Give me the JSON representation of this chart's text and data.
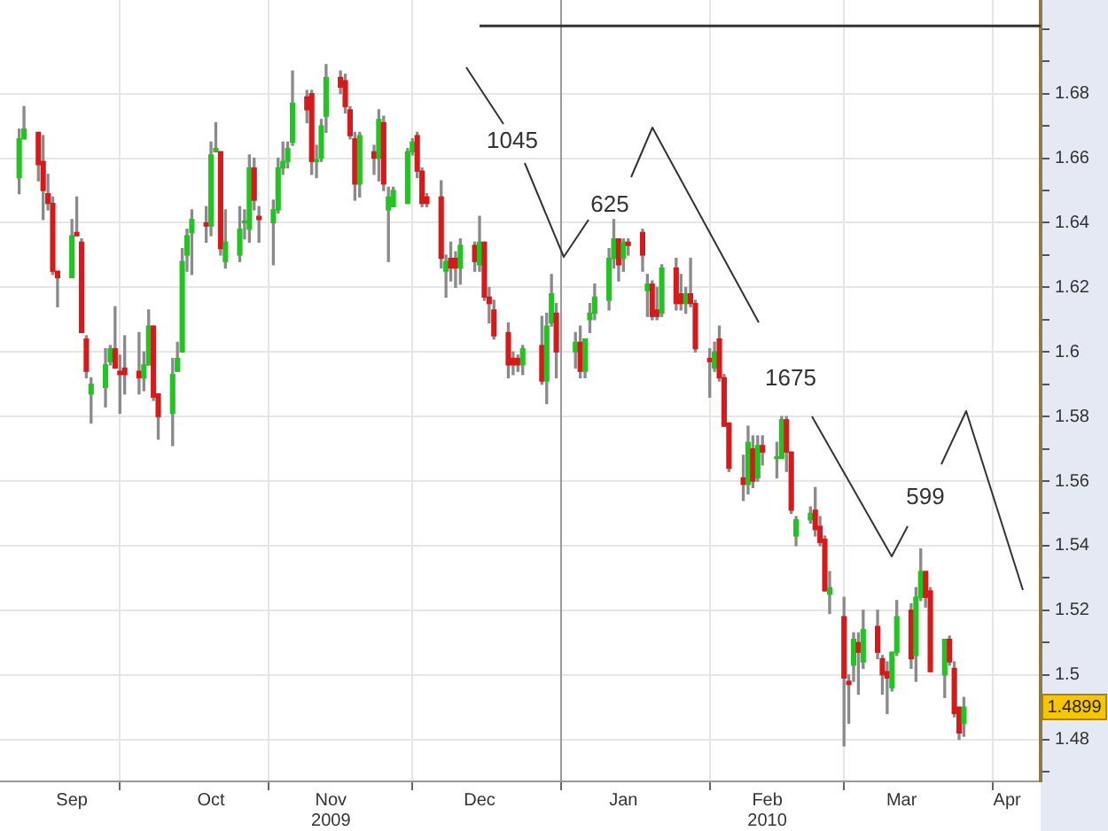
{
  "chart_data": {
    "type": "candlestick",
    "x": [
      "2009-09-10",
      "2009-09-11",
      "2009-09-14",
      "2009-09-15",
      "2009-09-16",
      "2009-09-17",
      "2009-09-18",
      "2009-09-21",
      "2009-09-22",
      "2009-09-23",
      "2009-09-24",
      "2009-09-25",
      "2009-09-28",
      "2009-09-29",
      "2009-09-30",
      "2009-10-01",
      "2009-10-02",
      "2009-10-05",
      "2009-10-06",
      "2009-10-07",
      "2009-10-08",
      "2009-10-09",
      "2009-10-12",
      "2009-10-13",
      "2009-10-14",
      "2009-10-15",
      "2009-10-16",
      "2009-10-19",
      "2009-10-20",
      "2009-10-21",
      "2009-10-22",
      "2009-10-23",
      "2009-10-26",
      "2009-10-27",
      "2009-10-28",
      "2009-10-29",
      "2009-10-30",
      "2009-11-02",
      "2009-11-03",
      "2009-11-04",
      "2009-11-05",
      "2009-11-06",
      "2009-11-09",
      "2009-11-10",
      "2009-11-11",
      "2009-11-12",
      "2009-11-13",
      "2009-11-16",
      "2009-11-17",
      "2009-11-18",
      "2009-11-19",
      "2009-11-20",
      "2009-11-23",
      "2009-11-24",
      "2009-11-25",
      "2009-11-26",
      "2009-11-27",
      "2009-11-30",
      "2009-12-01",
      "2009-12-02",
      "2009-12-03",
      "2009-12-04",
      "2009-12-07",
      "2009-12-08",
      "2009-12-09",
      "2009-12-10",
      "2009-12-11",
      "2009-12-14",
      "2009-12-15",
      "2009-12-16",
      "2009-12-17",
      "2009-12-18",
      "2009-12-21",
      "2009-12-22",
      "2009-12-23",
      "2009-12-24",
      "2009-12-28",
      "2009-12-29",
      "2009-12-30",
      "2009-12-31",
      "2010-01-04",
      "2010-01-05",
      "2010-01-06",
      "2010-01-07",
      "2010-01-08",
      "2010-01-11",
      "2010-01-12",
      "2010-01-13",
      "2010-01-14",
      "2010-01-15",
      "2010-01-18",
      "2010-01-19",
      "2010-01-20",
      "2010-01-21",
      "2010-01-22",
      "2010-01-25",
      "2010-01-26",
      "2010-01-27",
      "2010-01-28",
      "2010-01-29",
      "2010-02-01",
      "2010-02-02",
      "2010-02-03",
      "2010-02-04",
      "2010-02-05",
      "2010-02-08",
      "2010-02-09",
      "2010-02-10",
      "2010-02-11",
      "2010-02-12",
      "2010-02-15",
      "2010-02-16",
      "2010-02-17",
      "2010-02-18",
      "2010-02-19",
      "2010-02-22",
      "2010-02-23",
      "2010-02-24",
      "2010-02-25",
      "2010-02-26",
      "2010-03-01",
      "2010-03-02",
      "2010-03-03",
      "2010-03-04",
      "2010-03-05",
      "2010-03-08",
      "2010-03-09",
      "2010-03-10",
      "2010-03-11",
      "2010-03-12",
      "2010-03-15",
      "2010-03-16",
      "2010-03-17",
      "2010-03-18",
      "2010-03-19",
      "2010-03-22",
      "2010-03-23",
      "2010-03-24",
      "2010-03-25",
      "2010-03-26"
    ],
    "ohlc": [
      [
        1.654,
        1.669,
        1.649,
        1.666
      ],
      [
        1.666,
        1.676,
        1.666,
        1.669
      ],
      [
        1.668,
        1.668,
        1.653,
        1.658
      ],
      [
        1.659,
        1.667,
        1.641,
        1.65
      ],
      [
        1.649,
        1.655,
        1.644,
        1.646
      ],
      [
        1.646,
        1.648,
        1.624,
        1.625
      ],
      [
        1.625,
        1.625,
        1.614,
        1.623
      ],
      [
        1.623,
        1.641,
        1.623,
        1.636
      ],
      [
        1.637,
        1.648,
        1.636,
        1.636
      ],
      [
        1.634,
        1.635,
        1.606,
        1.606
      ],
      [
        1.604,
        1.605,
        1.592,
        1.594
      ],
      [
        1.587,
        1.592,
        1.578,
        1.59
      ],
      [
        1.589,
        1.601,
        1.583,
        1.596
      ],
      [
        1.597,
        1.602,
        1.596,
        1.601
      ],
      [
        1.601,
        1.614,
        1.595,
        1.595
      ],
      [
        1.594,
        1.599,
        1.581,
        1.593
      ],
      [
        1.595,
        1.605,
        1.587,
        1.593
      ],
      [
        1.594,
        1.606,
        1.587,
        1.592
      ],
      [
        1.592,
        1.6,
        1.588,
        1.596
      ],
      [
        1.596,
        1.613,
        1.596,
        1.608
      ],
      [
        1.608,
        1.608,
        1.585,
        1.586
      ],
      [
        1.587,
        1.587,
        1.573,
        1.58
      ],
      [
        1.581,
        1.598,
        1.571,
        1.593
      ],
      [
        1.594,
        1.603,
        1.594,
        1.598
      ],
      [
        1.6,
        1.632,
        1.6,
        1.628
      ],
      [
        1.63,
        1.638,
        1.625,
        1.636
      ],
      [
        1.637,
        1.644,
        1.624,
        1.641
      ],
      [
        1.64,
        1.645,
        1.634,
        1.639
      ],
      [
        1.639,
        1.665,
        1.636,
        1.661
      ],
      [
        1.662,
        1.671,
        1.662,
        1.663
      ],
      [
        1.662,
        1.662,
        1.63,
        1.632
      ],
      [
        1.628,
        1.644,
        1.626,
        1.634
      ],
      [
        1.63,
        1.645,
        1.628,
        1.638
      ],
      [
        1.64,
        1.644,
        1.635,
        1.64
      ],
      [
        1.638,
        1.661,
        1.634,
        1.657
      ],
      [
        1.657,
        1.66,
        1.644,
        1.647
      ],
      [
        1.642,
        1.645,
        1.634,
        1.641
      ],
      [
        1.64,
        1.647,
        1.627,
        1.644
      ],
      [
        1.644,
        1.66,
        1.643,
        1.657
      ],
      [
        1.657,
        1.665,
        1.655,
        1.659
      ],
      [
        1.659,
        1.665,
        1.657,
        1.663
      ],
      [
        1.665,
        1.687,
        1.664,
        1.677
      ],
      [
        1.679,
        1.681,
        1.671,
        1.675
      ],
      [
        1.68,
        1.681,
        1.655,
        1.659
      ],
      [
        1.659,
        1.664,
        1.654,
        1.659
      ],
      [
        1.66,
        1.672,
        1.659,
        1.67
      ],
      [
        1.673,
        1.689,
        1.668,
        1.685
      ],
      [
        1.685,
        1.687,
        1.68,
        1.682
      ],
      [
        1.684,
        1.686,
        1.674,
        1.676
      ],
      [
        1.675,
        1.676,
        1.666,
        1.667
      ],
      [
        1.666,
        1.668,
        1.647,
        1.652
      ],
      [
        1.652,
        1.668,
        1.648,
        1.667
      ],
      [
        1.662,
        1.664,
        1.655,
        1.66
      ],
      [
        1.66,
        1.675,
        1.653,
        1.672
      ],
      [
        1.671,
        1.673,
        1.65,
        1.652
      ],
      [
        1.644,
        1.651,
        1.628,
        1.648
      ],
      [
        1.645,
        1.651,
        1.645,
        1.65
      ],
      [
        1.646,
        1.663,
        1.646,
        1.662
      ],
      [
        1.662,
        1.666,
        1.661,
        1.665
      ],
      [
        1.667,
        1.668,
        1.654,
        1.656
      ],
      [
        1.656,
        1.657,
        1.645,
        1.646
      ],
      [
        1.648,
        1.649,
        1.645,
        1.646
      ],
      [
        1.648,
        1.653,
        1.626,
        1.629
      ],
      [
        1.625,
        1.63,
        1.617,
        1.628
      ],
      [
        1.629,
        1.634,
        1.622,
        1.626
      ],
      [
        1.629,
        1.631,
        1.62,
        1.626
      ],
      [
        1.626,
        1.635,
        1.621,
        1.633
      ],
      [
        1.633,
        1.634,
        1.625,
        1.628
      ],
      [
        1.627,
        1.642,
        1.625,
        1.634
      ],
      [
        1.634,
        1.634,
        1.616,
        1.617
      ],
      [
        1.617,
        1.62,
        1.609,
        1.615
      ],
      [
        1.613,
        1.616,
        1.604,
        1.605
      ],
      [
        1.606,
        1.609,
        1.592,
        1.596
      ],
      [
        1.598,
        1.6,
        1.593,
        1.596
      ],
      [
        1.598,
        1.599,
        1.594,
        1.596
      ],
      [
        1.596,
        1.602,
        1.593,
        1.601
      ],
      [
        1.602,
        1.611,
        1.59,
        1.591
      ],
      [
        1.591,
        1.612,
        1.584,
        1.608
      ],
      [
        1.609,
        1.624,
        1.608,
        1.618
      ],
      [
        1.612,
        1.615,
        1.592,
        1.6
      ],
      [
        1.6,
        1.606,
        1.595,
        1.603
      ],
      [
        1.603,
        1.608,
        1.592,
        1.594
      ],
      [
        1.594,
        1.604,
        1.592,
        1.604
      ],
      [
        1.61,
        1.615,
        1.606,
        1.612
      ],
      [
        1.612,
        1.621,
        1.61,
        1.617
      ],
      [
        1.616,
        1.632,
        1.613,
        1.629
      ],
      [
        1.629,
        1.641,
        1.626,
        1.635
      ],
      [
        1.635,
        1.635,
        1.622,
        1.627
      ],
      [
        1.629,
        1.635,
        1.625,
        1.634
      ],
      [
        1.634,
        1.635,
        1.63,
        1.633
      ],
      [
        1.637,
        1.638,
        1.625,
        1.63
      ],
      [
        1.619,
        1.624,
        1.611,
        1.621
      ],
      [
        1.621,
        1.622,
        1.61,
        1.611
      ],
      [
        1.613,
        1.62,
        1.61,
        1.611
      ],
      [
        1.612,
        1.627,
        1.611,
        1.626
      ],
      [
        1.626,
        1.629,
        1.613,
        1.615
      ],
      [
        1.618,
        1.624,
        1.613,
        1.615
      ],
      [
        1.615,
        1.62,
        1.612,
        1.618
      ],
      [
        1.618,
        1.629,
        1.614,
        1.615
      ],
      [
        1.615,
        1.616,
        1.6,
        1.601
      ],
      [
        1.598,
        1.601,
        1.586,
        1.597
      ],
      [
        1.595,
        1.603,
        1.594,
        1.6
      ],
      [
        1.604,
        1.608,
        1.591,
        1.592
      ],
      [
        1.592,
        1.593,
        1.577,
        1.577
      ],
      [
        1.578,
        1.578,
        1.563,
        1.564
      ],
      [
        1.561,
        1.568,
        1.554,
        1.559
      ],
      [
        1.559,
        1.577,
        1.556,
        1.572
      ],
      [
        1.57,
        1.574,
        1.558,
        1.56
      ],
      [
        1.561,
        1.574,
        1.56,
        1.571
      ],
      [
        1.571,
        1.574,
        1.565,
        1.569
      ],
      [
        1.567,
        1.572,
        1.561,
        1.567
      ],
      [
        1.567,
        1.58,
        1.567,
        1.579
      ],
      [
        1.579,
        1.58,
        1.563,
        1.569
      ],
      [
        1.569,
        1.569,
        1.55,
        1.551
      ],
      [
        1.543,
        1.549,
        1.54,
        1.548
      ],
      [
        1.548,
        1.552,
        1.547,
        1.55
      ],
      [
        1.551,
        1.558,
        1.543,
        1.545
      ],
      [
        1.546,
        1.549,
        1.54,
        1.541
      ],
      [
        1.542,
        1.543,
        1.526,
        1.526
      ],
      [
        1.525,
        1.532,
        1.519,
        1.527
      ],
      [
        1.518,
        1.524,
        1.478,
        1.499
      ],
      [
        1.498,
        1.5,
        1.485,
        1.497
      ],
      [
        1.503,
        1.513,
        1.498,
        1.511
      ],
      [
        1.51,
        1.513,
        1.494,
        1.507
      ],
      [
        1.504,
        1.52,
        1.502,
        1.514
      ],
      [
        1.515,
        1.52,
        1.505,
        1.507
      ],
      [
        1.505,
        1.506,
        1.494,
        1.5
      ],
      [
        1.501,
        1.504,
        1.488,
        1.499
      ],
      [
        1.496,
        1.507,
        1.495,
        1.507
      ],
      [
        1.507,
        1.523,
        1.506,
        1.518
      ],
      [
        1.52,
        1.522,
        1.502,
        1.505
      ],
      [
        1.506,
        1.527,
        1.498,
        1.524
      ],
      [
        1.524,
        1.539,
        1.523,
        1.532
      ],
      [
        1.532,
        1.532,
        1.521,
        1.524
      ],
      [
        1.526,
        1.527,
        1.501,
        1.501
      ],
      [
        1.5,
        1.511,
        1.493,
        1.511
      ],
      [
        1.511,
        1.512,
        1.503,
        1.504
      ],
      [
        1.502,
        1.504,
        1.487,
        1.488
      ],
      [
        1.49,
        1.49,
        1.48,
        1.482
      ],
      [
        1.485,
        1.493,
        1.481,
        1.49
      ]
    ],
    "xlim": [
      "2009-09-06",
      "2010-04-11"
    ],
    "xticks": [
      {
        "value": "2009-09-21",
        "label": "Sep"
      },
      {
        "value": "2009-10-01",
        "label": null
      },
      {
        "value": "2009-10-20",
        "label": "Oct"
      },
      {
        "value": "2009-11-01",
        "label": null
      },
      {
        "value": "2009-11-14",
        "label": "Nov\n2009"
      },
      {
        "value": "2009-12-01",
        "label": null
      },
      {
        "value": "2009-12-15",
        "label": "Dec"
      },
      {
        "value": "2010-01-01",
        "label": null
      },
      {
        "value": "2010-01-14",
        "label": "Jan"
      },
      {
        "value": "2010-02-01",
        "label": null
      },
      {
        "value": "2010-02-13",
        "label": "Feb\n2010"
      },
      {
        "value": "2010-03-01",
        "label": null
      },
      {
        "value": "2010-03-13",
        "label": "Mar"
      },
      {
        "value": "2010-04-01",
        "label": null
      },
      {
        "value": "2010-04-04",
        "label": "Apr"
      }
    ],
    "ref_lines": [
      {
        "axis": "x",
        "value": "2010-01-01",
        "color": "#9a9a9a"
      }
    ],
    "series": [
      {
        "type": "line",
        "x": [
          "2009-12-15",
          "2010-04-11"
        ],
        "values": [
          1.701,
          1.701
        ],
        "color": "#333333"
      }
    ],
    "ylim": [
      1.467,
      1.709
    ],
    "yticks": [
      {
        "value": 1.47,
        "label": null
      },
      1.48,
      {
        "value": 1.49,
        "label": null
      },
      1.5,
      {
        "value": 1.51,
        "label": null
      },
      1.52,
      {
        "value": 1.53,
        "label": null
      },
      1.54,
      {
        "value": 1.55,
        "label": null
      },
      1.56,
      {
        "value": 1.57,
        "label": null
      },
      1.58,
      {
        "value": 1.59,
        "label": null
      },
      1.6,
      {
        "value": 1.61,
        "label": null
      },
      1.62,
      {
        "value": 1.63,
        "label": null
      },
      1.64,
      {
        "value": 1.65,
        "label": null
      },
      1.66,
      {
        "value": 1.67,
        "label": null
      },
      1.68,
      {
        "value": 1.69,
        "label": null
      },
      {
        "value": 1.7,
        "label": null
      }
    ],
    "grid": true,
    "legend": false,
    "annotations": [
      "1045",
      "625",
      "1675",
      "599",
      "1.4899"
    ]
  }
}
